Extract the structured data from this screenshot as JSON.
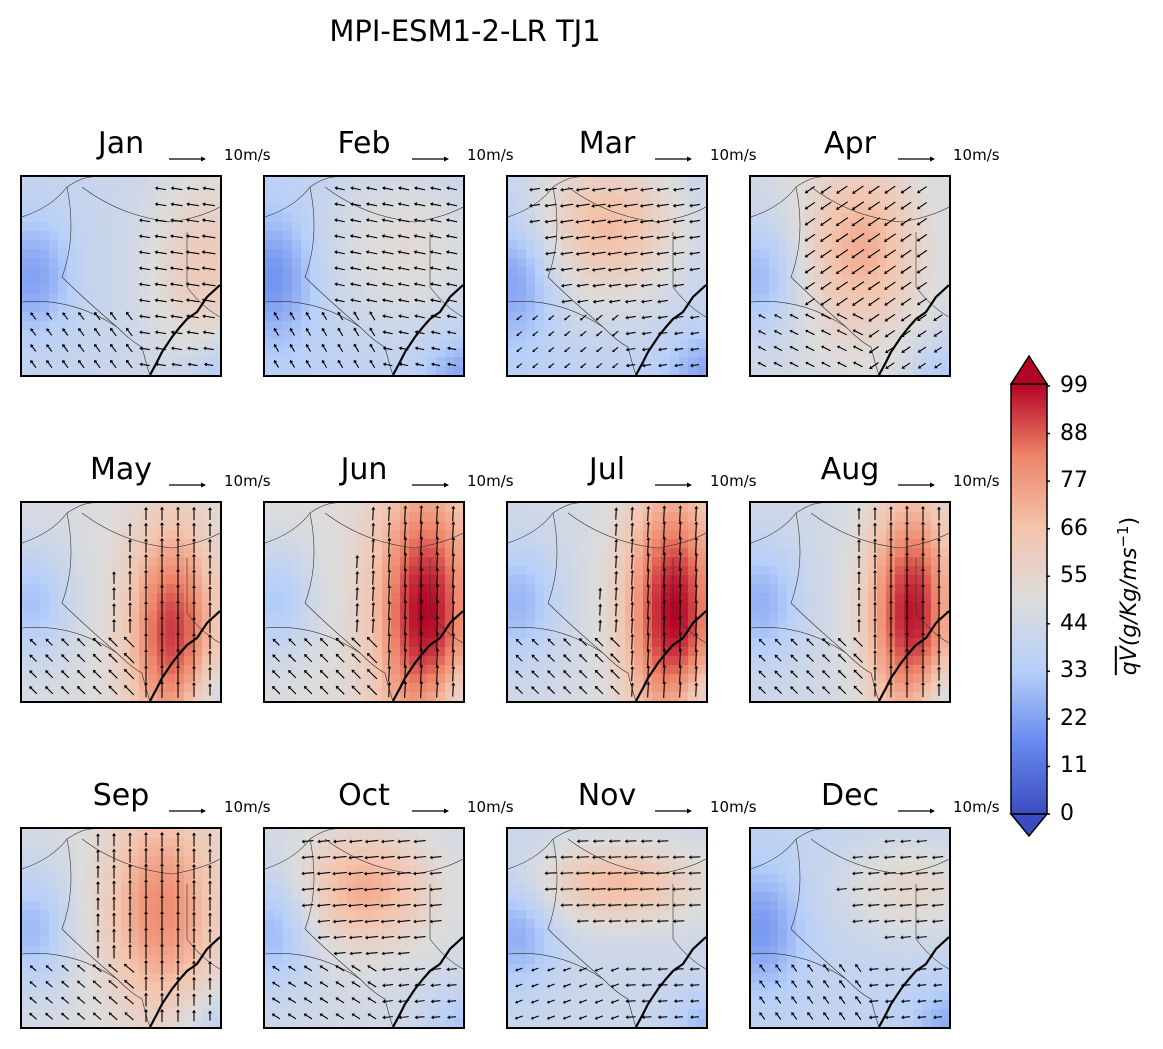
{
  "title": "MPI-ESM1-2-LR TJ1",
  "quiver_key_label": "10m/s",
  "colormap": [
    "#3b4cc0",
    "#688aef",
    "#b7cff9",
    "#dddcdc",
    "#f4c4ad",
    "#ee8468",
    "#b40426"
  ],
  "chart_data": {
    "type": "heatmap",
    "title": "MPI-ESM1-2-LR TJ1",
    "panels": [
      "Jan",
      "Feb",
      "Mar",
      "Apr",
      "May",
      "Jun",
      "Jul",
      "Aug",
      "Sep",
      "Oct",
      "Nov",
      "Dec"
    ],
    "colorbar": {
      "label": "qV (g/Kg/ms^-1)",
      "ticks": [
        0,
        11,
        22,
        33,
        44,
        55,
        66,
        77,
        88,
        99
      ],
      "range": [
        0,
        99
      ],
      "extend": "both"
    },
    "approx_max_qV_by_month": {
      "Jan": 62,
      "Feb": 52,
      "Mar": 68,
      "Apr": 72,
      "May": 92,
      "Jun": 99,
      "Jul": 99,
      "Aug": 97,
      "Sep": 80,
      "Oct": 72,
      "Nov": 68,
      "Dec": 55
    },
    "dominant_wind_by_month": {
      "Jan": "westward / north-westward",
      "Feb": "westward / north-westward",
      "Mar": "westward",
      "Apr": "south-westward",
      "May": "northward",
      "Jun": "northward",
      "Jul": "northward",
      "Aug": "northward",
      "Sep": "northward",
      "Oct": "westward",
      "Nov": "westward",
      "Dec": "westward"
    },
    "quiver_key": {
      "value": 10,
      "units": "m/s"
    }
  }
}
